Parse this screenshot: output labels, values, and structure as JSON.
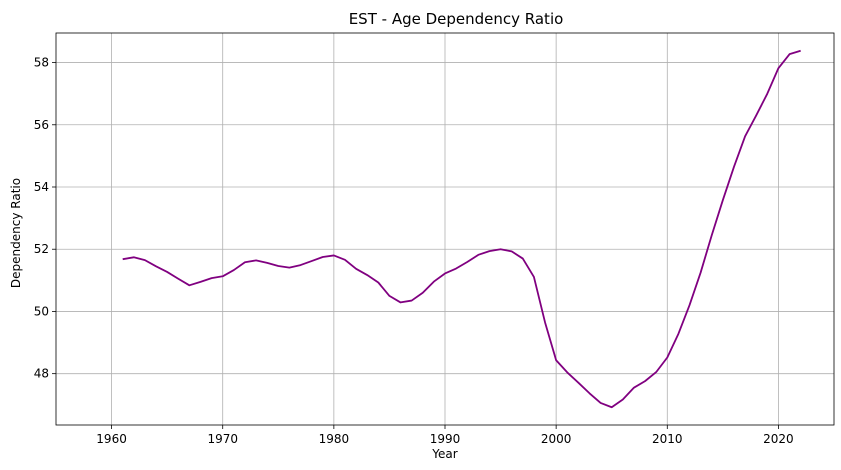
{
  "chart_data": {
    "type": "line",
    "title": "EST - Age Dependency Ratio",
    "xlabel": "Year",
    "ylabel": "Dependency Ratio",
    "xlim": [
      1955,
      2025
    ],
    "ylim": [
      46.35,
      58.95
    ],
    "xticks": [
      1960,
      1970,
      1980,
      1990,
      2000,
      2010,
      2020
    ],
    "yticks": [
      48,
      50,
      52,
      54,
      56,
      58
    ],
    "grid": true,
    "line_color": "#800080",
    "series": [
      {
        "x": [
          1961,
          1962,
          1963,
          1964,
          1965,
          1966,
          1967,
          1968,
          1969,
          1970,
          1971,
          1972,
          1973,
          1974,
          1975,
          1976,
          1977,
          1978,
          1979,
          1980,
          1981,
          1982,
          1983,
          1984,
          1985,
          1986,
          1987,
          1988,
          1989,
          1990,
          1991,
          1992,
          1993,
          1994,
          1995,
          1996,
          1997,
          1998,
          1999,
          2000,
          2001,
          2002,
          2003,
          2004,
          2005,
          2006,
          2007,
          2008,
          2009,
          2010,
          2011,
          2012,
          2013,
          2014,
          2015,
          2016,
          2017,
          2018,
          2019,
          2020,
          2021,
          2022
        ],
        "values": [
          51.68,
          51.74,
          51.65,
          51.45,
          51.27,
          51.05,
          50.84,
          50.95,
          51.07,
          51.13,
          51.33,
          51.58,
          51.64,
          51.56,
          51.46,
          51.41,
          51.49,
          51.62,
          51.75,
          51.8,
          51.66,
          51.37,
          51.17,
          50.93,
          50.5,
          50.29,
          50.35,
          50.6,
          50.96,
          51.22,
          51.38,
          51.59,
          51.82,
          51.94,
          52.0,
          51.93,
          51.7,
          51.11,
          49.65,
          48.43,
          48.04,
          47.71,
          47.37,
          47.06,
          46.92,
          47.17,
          47.55,
          47.76,
          48.05,
          48.52,
          49.28,
          50.2,
          51.25,
          52.45,
          53.58,
          54.65,
          55.63,
          56.3,
          57.0,
          57.82,
          58.27,
          58.38
        ]
      }
    ]
  }
}
